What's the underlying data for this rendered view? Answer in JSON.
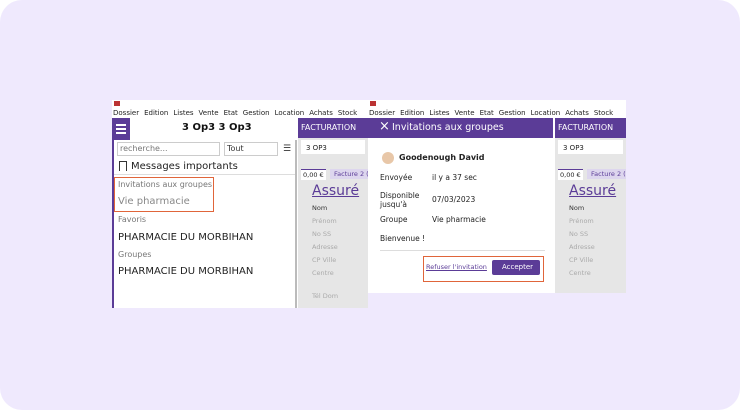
{
  "left": {
    "menu": [
      "Dossier",
      "Edition",
      "Listes",
      "Vente",
      "Etat",
      "Gestion",
      "Location",
      "Achats",
      "Stock"
    ],
    "title": "3 Op3 3 Op3",
    "search_placeholder": "recherche...",
    "filter": "Tout",
    "messages": "Messages importants",
    "invitations": "Invitations aux groupes",
    "invitation_group": "Vie pharmacie",
    "favoris": "Favoris",
    "favori_item": "PHARMACIE DU MORBIHAN",
    "groupes": "Groupes",
    "groupe_item": "PHARMACIE DU MORBIHAN",
    "side": {
      "header": "FACTURATION",
      "code": "3 OP3",
      "amount": "0,00 €",
      "invoice": "Facture 2 (",
      "heading": "Assuré",
      "fields": [
        "Nom",
        "Prénom",
        "No SS",
        "Adresse",
        "CP Ville",
        "Centre"
      ],
      "extra": "Tél Dom"
    }
  },
  "right": {
    "menu": [
      "Dossier",
      "Edition",
      "Listes",
      "Vente",
      "Etat",
      "Gestion",
      "Location",
      "Achats",
      "Stock"
    ],
    "dialog": {
      "title": "Invitations aux groupes",
      "sender": "Goodenough David",
      "rows": [
        [
          "Envoyée",
          "il y a 37 sec"
        ],
        [
          "Disponible jusqu'à",
          "07/03/2023"
        ],
        [
          "Groupe",
          "Vie pharmacie"
        ]
      ],
      "message": "Bienvenue !",
      "refuse": "Refuser l'invitation",
      "accept": "Accepter"
    },
    "side": {
      "header": "FACTURATION",
      "code": "3 OP3",
      "amount": "0,00 €",
      "invoice": "Facture 2 (",
      "heading": "Assuré",
      "fields": [
        "Nom",
        "Prénom",
        "No SS",
        "Adresse",
        "CP Ville",
        "Centre"
      ]
    }
  }
}
